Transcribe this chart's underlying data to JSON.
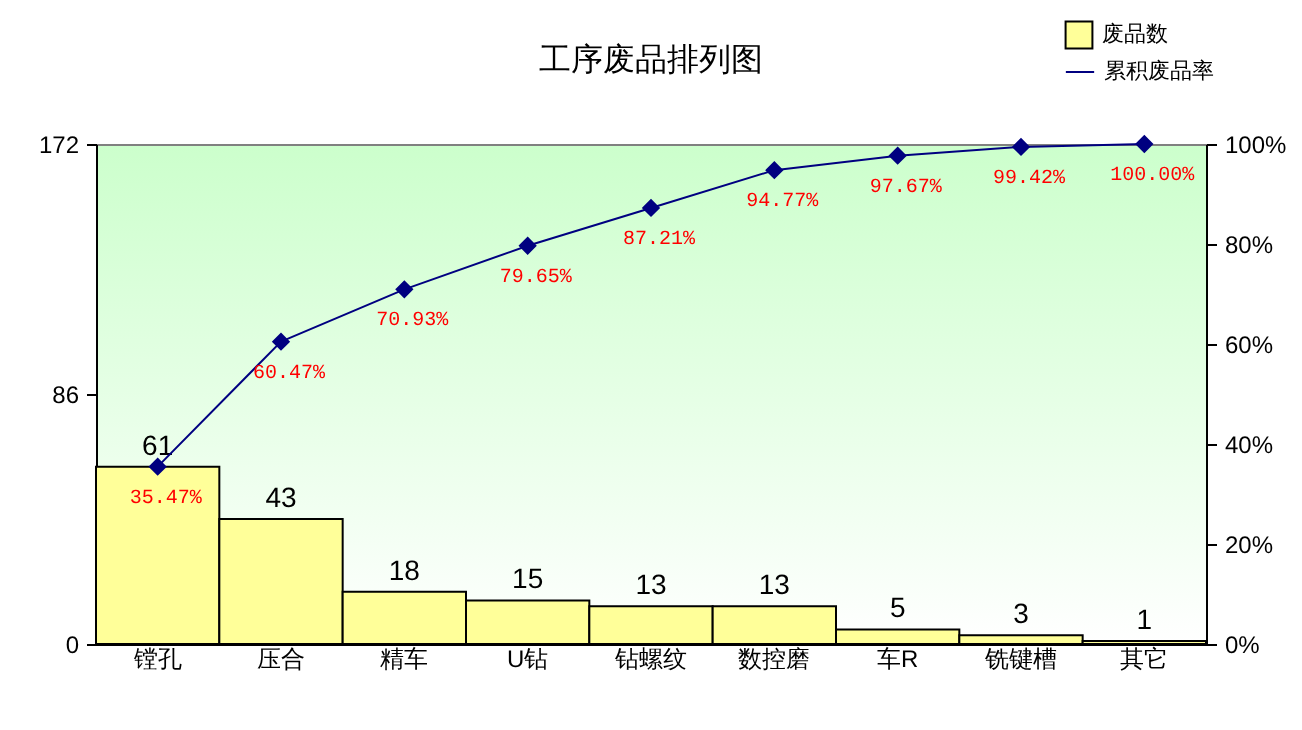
{
  "chart_data": {
    "type": "bar",
    "title": "工序废品排列图",
    "categories": [
      "镗孔",
      "压合",
      "精车",
      "U钻",
      "钻螺纹",
      "数控磨",
      "车R",
      "铣键槽",
      "其它"
    ],
    "series": [
      {
        "name": "废品数",
        "color": "#ffff99",
        "values": [
          61,
          43,
          18,
          15,
          13,
          13,
          5,
          3,
          1
        ]
      },
      {
        "name": "累积废品率",
        "type": "line",
        "axis": "y2",
        "color": "#000080",
        "values": [
          35.47,
          60.47,
          70.93,
          79.65,
          87.21,
          94.77,
          97.67,
          99.42,
          100.0
        ],
        "value_labels": [
          "35.47%",
          "60.47%",
          "70.93%",
          "79.65%",
          "87.21%",
          "94.77%",
          "97.67%",
          "99.42%",
          "100.00%"
        ]
      }
    ],
    "ylim": [
      0,
      172
    ],
    "yticks": [
      0,
      86,
      172
    ],
    "y2lim": [
      0,
      100
    ],
    "y2ticks": [
      {
        "value": 0,
        "label": "0%"
      },
      {
        "value": 20,
        "label": "20%"
      },
      {
        "value": 40,
        "label": "40%"
      },
      {
        "value": 60,
        "label": "60%"
      },
      {
        "value": 80,
        "label": "80%"
      },
      {
        "value": 100,
        "label": "100%"
      }
    ],
    "data_labels": true,
    "marker": "diamond",
    "grid": false,
    "legend": "top right"
  }
}
